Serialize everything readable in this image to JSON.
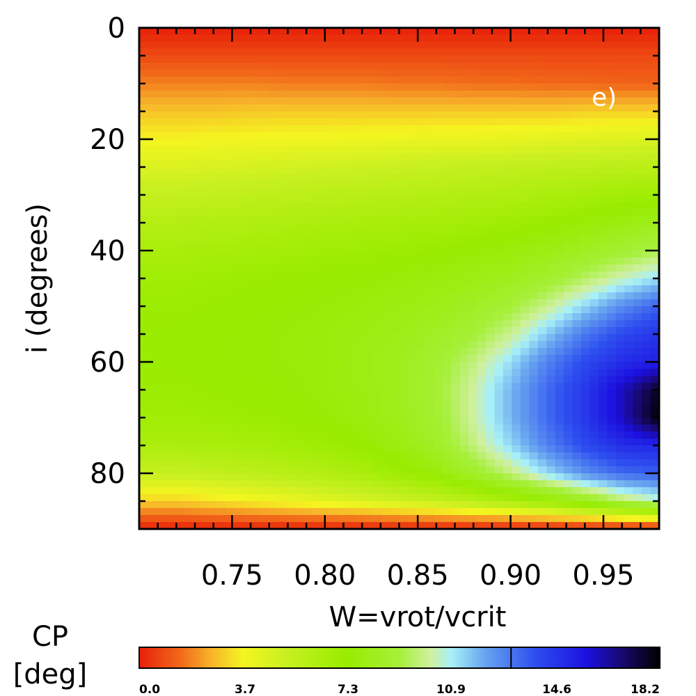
{
  "chart_data": {
    "type": "heatmap",
    "title": "",
    "panel_label": "e)",
    "xlabel": "W=vrot/vcrit",
    "ylabel": "i (degrees)",
    "x_range": [
      0.7,
      0.98
    ],
    "y_range": [
      0,
      90
    ],
    "y_inverted": true,
    "x_ticks": [
      {
        "value": 0.75,
        "label": "0.75"
      },
      {
        "value": 0.8,
        "label": "0.80"
      },
      {
        "value": 0.85,
        "label": "0.85"
      },
      {
        "value": 0.9,
        "label": "0.90"
      },
      {
        "value": 0.95,
        "label": "0.95"
      }
    ],
    "y_ticks": [
      {
        "value": 0,
        "label": "0"
      },
      {
        "value": 20,
        "label": "20"
      },
      {
        "value": 40,
        "label": "40"
      },
      {
        "value": 60,
        "label": "60"
      },
      {
        "value": 80,
        "label": "80"
      }
    ],
    "x_grid": [
      0.7,
      0.72,
      0.74,
      0.76,
      0.78,
      0.8,
      0.82,
      0.84,
      0.86,
      0.88,
      0.9,
      0.92,
      0.94,
      0.96,
      0.98
    ],
    "y_grid": [
      0,
      5,
      10,
      15,
      20,
      25,
      30,
      35,
      40,
      45,
      50,
      55,
      60,
      65,
      70,
      75,
      80,
      85,
      90
    ],
    "values": [
      [
        0.0,
        0.0,
        0.0,
        0.0,
        0.0,
        0.0,
        0.0,
        0.0,
        0.0,
        0.0,
        0.0,
        0.0,
        0.0,
        0.0,
        0.0
      ],
      [
        0.8,
        0.8,
        0.8,
        0.8,
        0.8,
        0.8,
        0.8,
        0.8,
        0.8,
        0.8,
        0.8,
        0.8,
        0.8,
        0.8,
        0.8
      ],
      [
        1.8,
        1.8,
        1.8,
        1.8,
        1.7,
        1.7,
        1.7,
        1.6,
        1.6,
        1.5,
        1.5,
        1.4,
        1.4,
        1.3,
        1.3
      ],
      [
        2.8,
        2.8,
        2.8,
        2.9,
        2.9,
        2.9,
        2.9,
        2.9,
        2.9,
        2.9,
        2.9,
        2.9,
        3.0,
        3.0,
        3.0
      ],
      [
        3.6,
        3.6,
        3.7,
        3.7,
        3.8,
        3.8,
        3.9,
        3.9,
        4.0,
        4.0,
        4.1,
        4.2,
        4.3,
        4.4,
        4.5
      ],
      [
        4.5,
        4.5,
        4.6,
        4.7,
        4.8,
        4.9,
        5.0,
        5.1,
        5.2,
        5.3,
        5.4,
        5.5,
        5.6,
        5.7,
        5.8
      ],
      [
        5.3,
        5.3,
        5.4,
        5.5,
        5.6,
        5.7,
        5.8,
        5.9,
        6.0,
        6.1,
        6.2,
        6.4,
        6.6,
        6.8,
        7.0
      ],
      [
        6.0,
        6.0,
        6.1,
        6.2,
        6.3,
        6.4,
        6.5,
        6.6,
        6.7,
        6.8,
        7.0,
        7.2,
        7.5,
        7.8,
        8.1
      ],
      [
        6.5,
        6.5,
        6.6,
        6.7,
        6.8,
        6.9,
        7.0,
        7.1,
        7.2,
        7.4,
        7.6,
        7.9,
        8.3,
        8.8,
        9.3
      ],
      [
        6.9,
        6.9,
        7.0,
        7.1,
        7.2,
        7.3,
        7.4,
        7.5,
        7.7,
        7.9,
        8.2,
        8.7,
        9.5,
        10.4,
        11.2
      ],
      [
        7.1,
        7.1,
        7.2,
        7.3,
        7.4,
        7.5,
        7.6,
        7.8,
        8.0,
        8.4,
        9.0,
        10.0,
        11.3,
        12.6,
        13.5
      ],
      [
        7.2,
        7.2,
        7.3,
        7.4,
        7.5,
        7.6,
        7.8,
        8.0,
        8.4,
        9.0,
        10.0,
        11.5,
        13.0,
        14.0,
        14.6
      ],
      [
        7.2,
        7.2,
        7.3,
        7.4,
        7.5,
        7.6,
        7.9,
        8.2,
        8.8,
        9.8,
        11.2,
        12.8,
        14.0,
        14.8,
        15.2
      ],
      [
        7.1,
        7.1,
        7.2,
        7.3,
        7.4,
        7.6,
        7.8,
        8.2,
        8.9,
        10.2,
        11.8,
        13.3,
        14.5,
        16.0,
        17.8
      ],
      [
        6.9,
        6.9,
        7.0,
        7.1,
        7.2,
        7.4,
        7.7,
        8.1,
        8.8,
        10.2,
        11.8,
        13.3,
        14.5,
        16.0,
        18.2
      ],
      [
        6.4,
        6.4,
        6.5,
        6.6,
        6.8,
        7.0,
        7.3,
        7.8,
        8.5,
        9.8,
        11.3,
        12.8,
        14.0,
        14.8,
        15.0
      ],
      [
        5.2,
        5.2,
        5.4,
        5.6,
        5.8,
        6.1,
        6.5,
        7.0,
        7.6,
        8.6,
        9.8,
        11.2,
        12.5,
        13.3,
        13.5
      ],
      [
        3.0,
        3.0,
        3.3,
        3.6,
        3.9,
        4.2,
        4.5,
        4.9,
        5.3,
        5.8,
        6.4,
        7.2,
        8.2,
        9.5,
        10.5
      ],
      [
        0.0,
        0.0,
        0.0,
        0.0,
        0.0,
        0.0,
        0.0,
        0.0,
        0.0,
        0.0,
        0.0,
        0.0,
        0.0,
        0.0,
        0.0
      ]
    ],
    "colorbar": {
      "title_line1": "CP",
      "title_line2": "[deg]",
      "min": 0.0,
      "max": 18.2,
      "tick_labels": [
        "0.0",
        "3.7",
        "7.3",
        "10.9",
        "14.6",
        "18.2"
      ],
      "tick_values": [
        0.0,
        3.7,
        7.3,
        10.9,
        14.6,
        18.2
      ],
      "marker_value": 13.0,
      "colors": [
        {
          "pos": 0.0,
          "color": "#e8200a"
        },
        {
          "pos": 0.08,
          "color": "#f26a1a"
        },
        {
          "pos": 0.14,
          "color": "#f7b52a"
        },
        {
          "pos": 0.2,
          "color": "#f5f520"
        },
        {
          "pos": 0.28,
          "color": "#c8f020"
        },
        {
          "pos": 0.4,
          "color": "#98ec00"
        },
        {
          "pos": 0.5,
          "color": "#a6f03a"
        },
        {
          "pos": 0.56,
          "color": "#d0f0a0"
        },
        {
          "pos": 0.6,
          "color": "#a8f0f8"
        },
        {
          "pos": 0.66,
          "color": "#6aa8f0"
        },
        {
          "pos": 0.76,
          "color": "#2e4ff0"
        },
        {
          "pos": 0.86,
          "color": "#1c10e0"
        },
        {
          "pos": 0.93,
          "color": "#18086a"
        },
        {
          "pos": 1.0,
          "color": "#000000"
        }
      ]
    }
  }
}
